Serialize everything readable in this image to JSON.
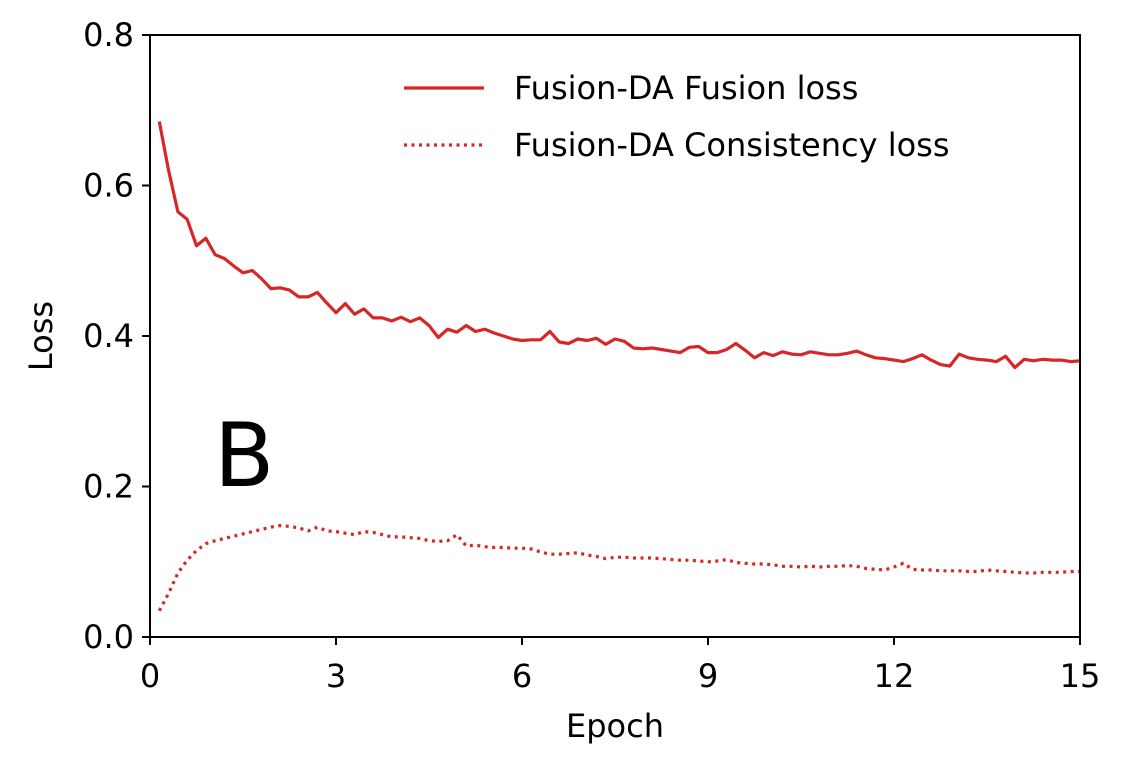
{
  "chart_data": {
    "type": "line",
    "panel_label": "B",
    "xlabel": "Epoch",
    "ylabel": "Loss",
    "xlim": [
      0,
      15
    ],
    "ylim": [
      0,
      0.8
    ],
    "xticks": [
      0,
      3,
      6,
      9,
      12,
      15
    ],
    "yticks": [
      0.0,
      0.2,
      0.4,
      0.6,
      0.8
    ],
    "xtick_labels": [
      "0",
      "3",
      "6",
      "9",
      "12",
      "15"
    ],
    "ytick_labels": [
      "0.0",
      "0.2",
      "0.4",
      "0.6",
      "0.8"
    ],
    "grid": false,
    "legend_position": "top-right",
    "series": [
      {
        "name": "Fusion-DA Fusion loss",
        "color": "#d62728",
        "style": "solid",
        "x": [
          0.15,
          0.3,
          0.45,
          0.6,
          0.75,
          0.9,
          1.05,
          1.2,
          1.35,
          1.5,
          1.65,
          1.8,
          1.95,
          2.1,
          2.25,
          2.4,
          2.55,
          2.7,
          2.85,
          3.0,
          3.15,
          3.3,
          3.45,
          3.6,
          3.75,
          3.9,
          4.05,
          4.2,
          4.35,
          4.5,
          4.65,
          4.8,
          4.95,
          5.1,
          5.25,
          5.4,
          5.55,
          5.7,
          5.85,
          6.0,
          6.15,
          6.3,
          6.45,
          6.6,
          6.75,
          6.9,
          7.05,
          7.2,
          7.35,
          7.5,
          7.65,
          7.8,
          7.95,
          8.1,
          8.25,
          8.4,
          8.55,
          8.7,
          8.85,
          9.0,
          9.15,
          9.3,
          9.45,
          9.6,
          9.75,
          9.9,
          10.05,
          10.2,
          10.35,
          10.5,
          10.65,
          10.8,
          10.95,
          11.1,
          11.25,
          11.4,
          11.55,
          11.7,
          11.85,
          12.0,
          12.15,
          12.3,
          12.45,
          12.6,
          12.75,
          12.9,
          13.05,
          13.2,
          13.35,
          13.5,
          13.65,
          13.8,
          13.95,
          14.1,
          14.25,
          14.4,
          14.55,
          14.7,
          14.85,
          15.0
        ],
        "y": [
          0.685,
          0.62,
          0.565,
          0.555,
          0.52,
          0.53,
          0.508,
          0.503,
          0.493,
          0.484,
          0.487,
          0.476,
          0.463,
          0.464,
          0.461,
          0.452,
          0.452,
          0.458,
          0.444,
          0.431,
          0.443,
          0.429,
          0.436,
          0.424,
          0.424,
          0.42,
          0.425,
          0.419,
          0.424,
          0.414,
          0.398,
          0.409,
          0.405,
          0.414,
          0.406,
          0.409,
          0.404,
          0.4,
          0.396,
          0.394,
          0.395,
          0.395,
          0.406,
          0.392,
          0.39,
          0.396,
          0.394,
          0.397,
          0.389,
          0.396,
          0.393,
          0.384,
          0.383,
          0.384,
          0.382,
          0.38,
          0.378,
          0.385,
          0.386,
          0.378,
          0.378,
          0.382,
          0.39,
          0.381,
          0.371,
          0.378,
          0.374,
          0.379,
          0.376,
          0.375,
          0.379,
          0.377,
          0.375,
          0.375,
          0.377,
          0.38,
          0.375,
          0.371,
          0.37,
          0.368,
          0.366,
          0.37,
          0.375,
          0.368,
          0.362,
          0.36,
          0.376,
          0.371,
          0.369,
          0.368,
          0.366,
          0.373,
          0.358,
          0.369,
          0.367,
          0.369,
          0.368,
          0.368,
          0.366,
          0.367
        ]
      },
      {
        "name": "Fusion-DA Consistency loss",
        "color": "#d62728",
        "style": "dotted",
        "x": [
          0.15,
          0.3,
          0.45,
          0.6,
          0.75,
          0.9,
          1.05,
          1.2,
          1.35,
          1.5,
          1.65,
          1.8,
          1.95,
          2.1,
          2.25,
          2.4,
          2.55,
          2.7,
          2.85,
          3.0,
          3.15,
          3.3,
          3.45,
          3.6,
          3.75,
          3.9,
          4.05,
          4.2,
          4.35,
          4.5,
          4.65,
          4.8,
          4.95,
          5.1,
          5.25,
          5.4,
          5.55,
          5.7,
          5.85,
          6.0,
          6.15,
          6.3,
          6.45,
          6.6,
          6.75,
          6.9,
          7.05,
          7.2,
          7.35,
          7.5,
          7.65,
          7.8,
          7.95,
          8.1,
          8.25,
          8.4,
          8.55,
          8.7,
          8.85,
          9.0,
          9.15,
          9.3,
          9.45,
          9.6,
          9.75,
          9.9,
          10.05,
          10.2,
          10.35,
          10.5,
          10.65,
          10.8,
          10.95,
          11.1,
          11.25,
          11.4,
          11.55,
          11.7,
          11.85,
          12.0,
          12.15,
          12.3,
          12.45,
          12.6,
          12.75,
          12.9,
          13.05,
          13.2,
          13.35,
          13.5,
          13.65,
          13.8,
          13.95,
          14.1,
          14.25,
          14.4,
          14.55,
          14.7,
          14.85,
          15.0
        ],
        "y": [
          0.035,
          0.058,
          0.085,
          0.102,
          0.115,
          0.124,
          0.128,
          0.131,
          0.134,
          0.137,
          0.14,
          0.143,
          0.146,
          0.148,
          0.147,
          0.145,
          0.141,
          0.146,
          0.141,
          0.14,
          0.138,
          0.136,
          0.14,
          0.139,
          0.136,
          0.133,
          0.133,
          0.132,
          0.131,
          0.128,
          0.127,
          0.128,
          0.136,
          0.121,
          0.122,
          0.12,
          0.119,
          0.119,
          0.118,
          0.118,
          0.117,
          0.113,
          0.11,
          0.11,
          0.111,
          0.112,
          0.109,
          0.107,
          0.104,
          0.106,
          0.106,
          0.105,
          0.105,
          0.105,
          0.104,
          0.103,
          0.102,
          0.102,
          0.101,
          0.1,
          0.101,
          0.103,
          0.099,
          0.098,
          0.097,
          0.097,
          0.096,
          0.094,
          0.094,
          0.093,
          0.094,
          0.093,
          0.094,
          0.094,
          0.095,
          0.094,
          0.091,
          0.09,
          0.089,
          0.093,
          0.098,
          0.09,
          0.089,
          0.089,
          0.088,
          0.088,
          0.088,
          0.087,
          0.087,
          0.089,
          0.088,
          0.087,
          0.086,
          0.085,
          0.085,
          0.086,
          0.086,
          0.086,
          0.087,
          0.087
        ]
      }
    ]
  }
}
